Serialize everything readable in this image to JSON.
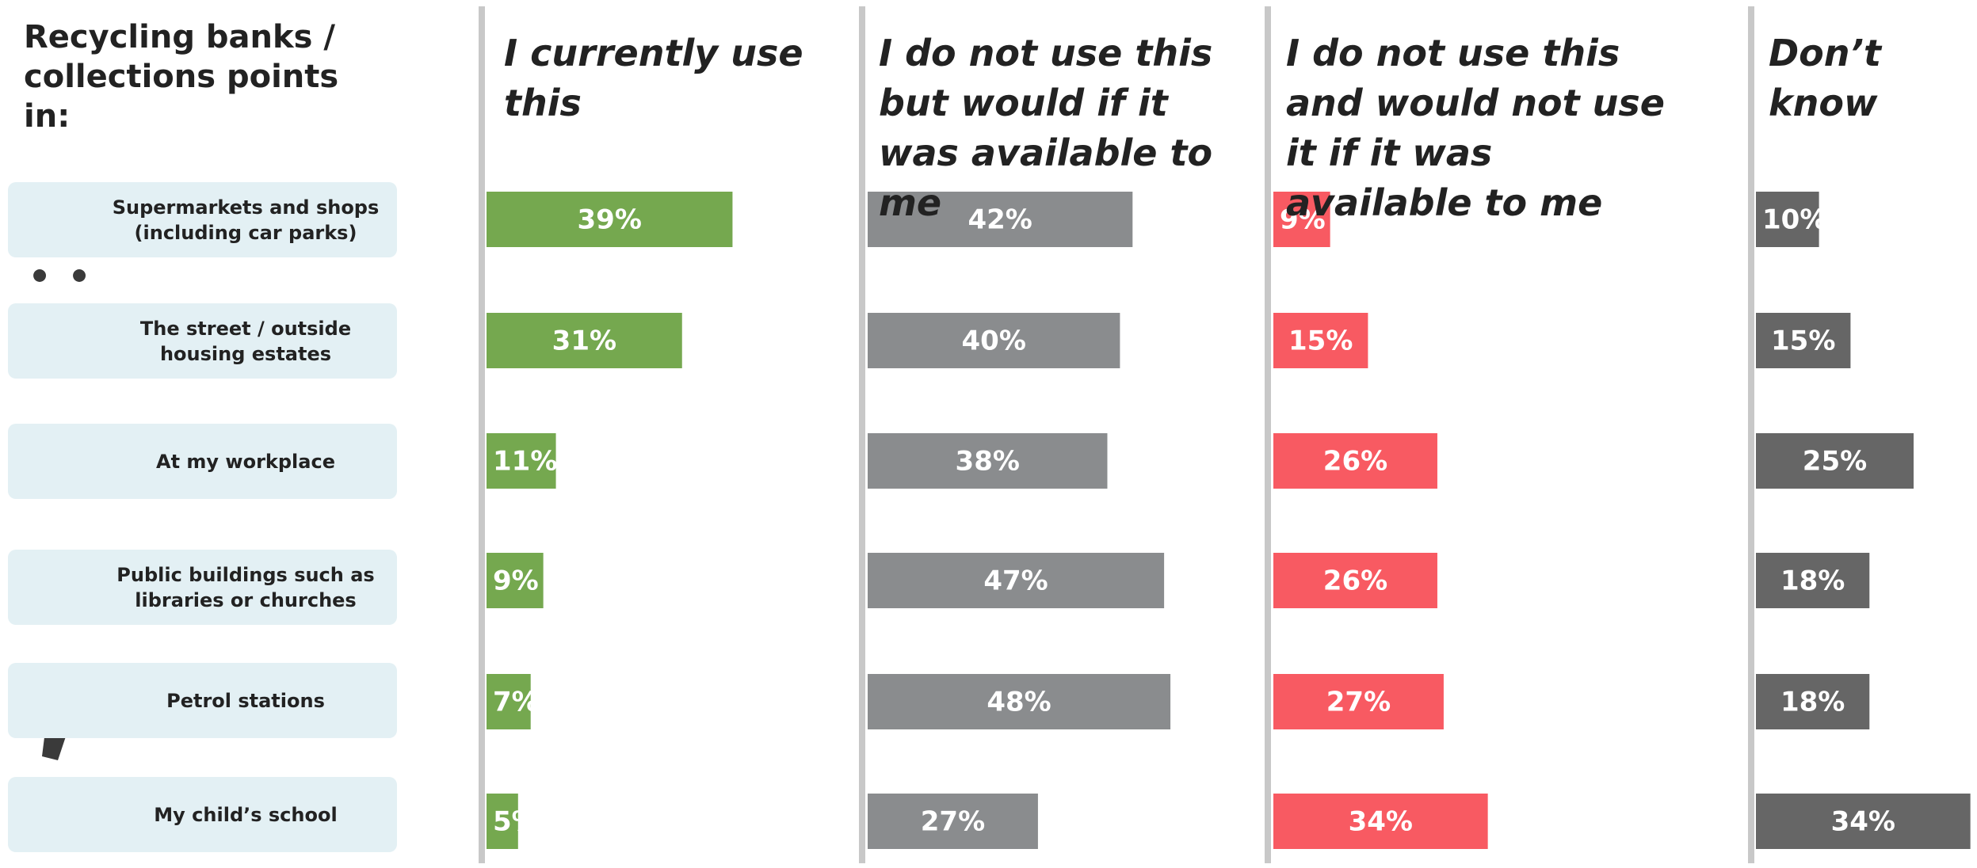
{
  "chart_data": {
    "type": "bar",
    "orientation": "horizontal",
    "title": "Recycling banks / collections points in:",
    "categories": [
      "Supermarkets and shops (including car parks)",
      "The street / outside housing estates",
      "At my workplace",
      "Public buildings such as libraries or churches",
      "Petrol stations",
      "My child’s school"
    ],
    "series": [
      {
        "name": "I currently use this",
        "color": "#75a84f",
        "values": [
          39,
          31,
          11,
          9,
          7,
          5
        ],
        "value_labels": [
          "39%",
          "31%",
          "11%",
          "9%",
          "7%",
          "5%"
        ]
      },
      {
        "name": "I do not use this but would if it was available to me",
        "color": "#8a8c8e",
        "values": [
          42,
          40,
          38,
          47,
          48,
          27
        ],
        "value_labels": [
          "42%",
          "40%",
          "38%",
          "47%",
          "48%",
          "27%"
        ]
      },
      {
        "name": "I do not use this and would not use it if it was available to me",
        "color": "#f85a62",
        "values": [
          9,
          15,
          26,
          26,
          27,
          34
        ],
        "value_labels": [
          "9%",
          "15%",
          "26%",
          "26%",
          "27%",
          "34%"
        ]
      },
      {
        "name": "Don’t know",
        "color": "#666666",
        "values": [
          10,
          15,
          25,
          18,
          18,
          34
        ],
        "value_labels": [
          "10%",
          "15%",
          "25%",
          "18%",
          "18%",
          "34%"
        ]
      }
    ]
  }
}
